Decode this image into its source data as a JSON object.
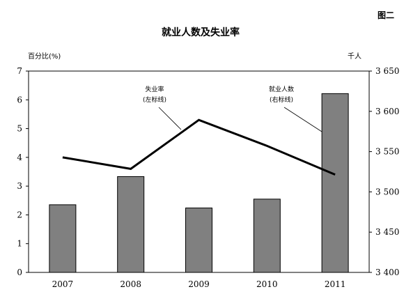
{
  "figure_label": "图二",
  "chart_data": {
    "type": "bar+line",
    "title": "就业人数及失业率",
    "categories": [
      "2007",
      "2008",
      "2009",
      "2010",
      "2011"
    ],
    "left_axis": {
      "label": "百分比(%)",
      "range": [
        0,
        7
      ],
      "ticks": [
        "0",
        "1",
        "2",
        "3",
        "4",
        "5",
        "6",
        "7"
      ]
    },
    "right_axis": {
      "label": "千人",
      "range": [
        3400,
        3650
      ],
      "ticks": [
        "3 400",
        "3 450",
        "3 500",
        "3 550",
        "3 600",
        "3 650"
      ]
    },
    "series": [
      {
        "name": "就业人数",
        "type": "bar",
        "axis": "right",
        "values": [
          3484,
          3519,
          3480,
          3491,
          3622
        ]
      },
      {
        "name": "失业率",
        "type": "line",
        "axis": "left",
        "values": [
          4.0,
          3.6,
          5.3,
          4.4,
          3.4
        ]
      }
    ],
    "annotations": [
      {
        "line1": "失业率",
        "line2": "(左标线)"
      },
      {
        "line1": "就业人数",
        "line2": "(右标线)"
      }
    ],
    "grid": false,
    "colors": {
      "bar": "#808080",
      "line": "#000000"
    }
  }
}
